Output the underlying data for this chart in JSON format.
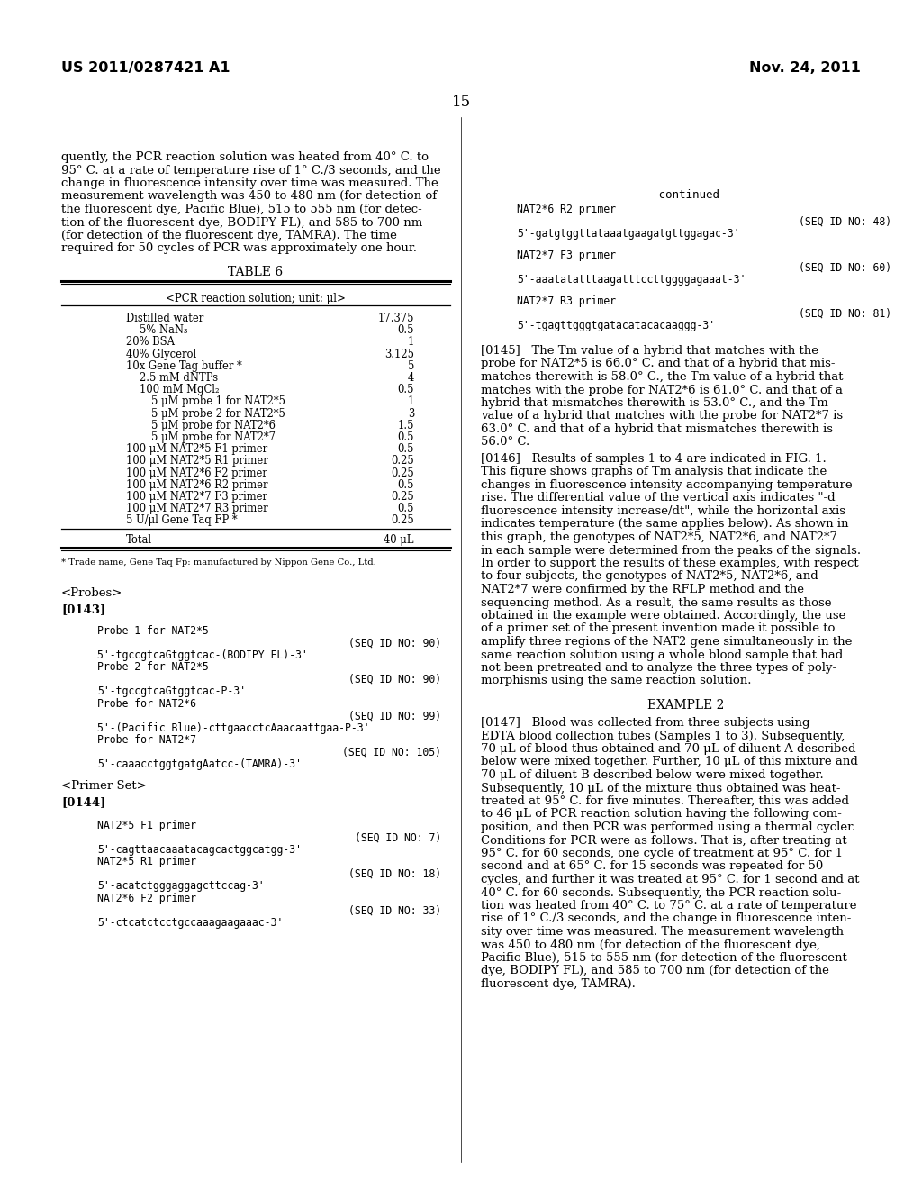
{
  "header_left": "US 2011/0287421 A1",
  "header_right": "Nov. 24, 2011",
  "page_number": "15",
  "background_color": "#ffffff",
  "left_intro": [
    "quently, the PCR reaction solution was heated from 40° C. to",
    "95° C. at a rate of temperature rise of 1° C./3 seconds, and the",
    "change in fluorescence intensity over time was measured. The",
    "measurement wavelength was 450 to 480 nm (for detection of",
    "the fluorescent dye, Pacific Blue), 515 to 555 nm (for detec-",
    "tion of the fluorescent dye, BODIPY FL), and 585 to 700 nm",
    "(for detection of the fluorescent dye, TAMRA). The time",
    "required for 50 cycles of PCR was approximately one hour."
  ],
  "table_title": "TABLE 6",
  "table_subtitle": "<PCR reaction solution; unit: μl>",
  "table_rows": [
    [
      "Distilled water",
      "17.375",
      0
    ],
    [
      "5% NaN₃",
      "0.5",
      1
    ],
    [
      "20% BSA",
      "1",
      0
    ],
    [
      "40% Glycerol",
      "3.125",
      0
    ],
    [
      "10x Gene Tag buffer *",
      "5",
      0
    ],
    [
      "2.5 mM dNTPs",
      "4",
      1
    ],
    [
      "100 mM MgCl₂",
      "0.5",
      1
    ],
    [
      "5 μM probe 1 for NAT2*5",
      "1",
      2
    ],
    [
      "5 μM probe 2 for NAT2*5",
      "3",
      2
    ],
    [
      "5 μM probe for NAT2*6",
      "1.5",
      2
    ],
    [
      "5 μM probe for NAT2*7",
      "0.5",
      2
    ],
    [
      "100 μM NAT2*5 F1 primer",
      "0.5",
      0
    ],
    [
      "100 μM NAT2*5 R1 primer",
      "0.25",
      0
    ],
    [
      "100 μM NAT2*6 F2 primer",
      "0.25",
      0
    ],
    [
      "100 μM NAT2*6 R2 primer",
      "0.5",
      0
    ],
    [
      "100 μM NAT2*7 F3 primer",
      "0.25",
      0
    ],
    [
      "100 μM NAT2*7 R3 primer",
      "0.5",
      0
    ],
    [
      "5 U/μl Gene Taq FP *",
      "0.25",
      0
    ]
  ],
  "table_total": [
    "Total",
    "40 μL"
  ],
  "table_footnote": "* Trade name, Gene Taq Fp: manufactured by Nippon Gene Co., Ltd.",
  "probes_label": "<Probes>",
  "p0143": "[0143]",
  "probes_items": [
    [
      "Probe 1 for NAT2*5",
      "",
      false
    ],
    [
      "",
      "(SEQ ID NO: 90)",
      true
    ],
    [
      "5'-tgccgtcaGtggtcac-(BODIPY FL)-3'",
      "",
      false
    ],
    [
      "Probe 2 for NAT2*5",
      "",
      false
    ],
    [
      "",
      "(SEQ ID NO: 90)",
      true
    ],
    [
      "5'-tgccgtcaGtggtcac-P-3'",
      "",
      false
    ],
    [
      "Probe for NAT2*6",
      "",
      false
    ],
    [
      "",
      "(SEQ ID NO: 99)",
      true
    ],
    [
      "5'-(Pacific Blue)-cttgaacctcAaacaattgaa-P-3'",
      "",
      false
    ],
    [
      "Probe for NAT2*7",
      "",
      false
    ],
    [
      "",
      "(SEQ ID NO: 105)",
      true
    ],
    [
      "5'-caaacctggtgatgAatcc-(TAMRA)-3'",
      "",
      false
    ]
  ],
  "primer_label": "<Primer Set>",
  "p0144": "[0144]",
  "primer_items": [
    [
      "NAT2*5 F1 primer",
      "",
      false
    ],
    [
      "",
      "(SEQ ID NO: 7)",
      true
    ],
    [
      "5'-cagttaacaaatacagcactggcatgg-3'",
      "",
      false
    ],
    [
      "NAT2*5 R1 primer",
      "",
      false
    ],
    [
      "",
      "(SEQ ID NO: 18)",
      true
    ],
    [
      "5'-acatctgggaggagcttccag-3'",
      "",
      false
    ],
    [
      "NAT2*6 F2 primer",
      "",
      false
    ],
    [
      "",
      "(SEQ ID NO: 33)",
      true
    ],
    [
      "5'-ctcatctcctgccaaagaagaaac-3'",
      "",
      false
    ]
  ],
  "right_continued": "-continued",
  "right_seq_items": [
    [
      "NAT2*6 R2 primer",
      "(SEQ ID NO: 48)",
      "5'-gatgtggttataaatgaagatgttggagac-3'"
    ],
    [
      "NAT2*7 F3 primer",
      "(SEQ ID NO: 60)",
      "5'-aaatatatttaagatttccttggggagaaat-3'"
    ],
    [
      "NAT2*7 R3 primer",
      "(SEQ ID NO: 81)",
      "5'-tgagttgggtgatacatacacaaggg-3'"
    ]
  ],
  "para145": [
    "[0145]   The Tm value of a hybrid that matches with the",
    "probe for NAT2*5 is 66.0° C. and that of a hybrid that mis-",
    "matches therewith is 58.0° C., the Tm value of a hybrid that",
    "matches with the probe for NAT2*6 is 61.0° C. and that of a",
    "hybrid that mismatches therewith is 53.0° C., and the Tm",
    "value of a hybrid that matches with the probe for NAT2*7 is",
    "63.0° C. and that of a hybrid that mismatches therewith is",
    "56.0° C."
  ],
  "para146": [
    "[0146]   Results of samples 1 to 4 are indicated in FIG. 1.",
    "This figure shows graphs of Tm analysis that indicate the",
    "changes in fluorescence intensity accompanying temperature",
    "rise. The differential value of the vertical axis indicates \"-d",
    "fluorescence intensity increase/dt\", while the horizontal axis",
    "indicates temperature (the same applies below). As shown in",
    "this graph, the genotypes of NAT2*5, NAT2*6, and NAT2*7",
    "in each sample were determined from the peaks of the signals.",
    "In order to support the results of these examples, with respect",
    "to four subjects, the genotypes of NAT2*5, NAT2*6, and",
    "NAT2*7 were confirmed by the RFLP method and the",
    "sequencing method. As a result, the same results as those",
    "obtained in the example were obtained. Accordingly, the use",
    "of a primer set of the present invention made it possible to",
    "amplify three regions of the NAT2 gene simultaneously in the",
    "same reaction solution using a whole blood sample that had",
    "not been pretreated and to analyze the three types of poly-",
    "morphisms using the same reaction solution."
  ],
  "example2": "EXAMPLE 2",
  "para147": [
    "[0147]   Blood was collected from three subjects using",
    "EDTA blood collection tubes (Samples 1 to 3). Subsequently,",
    "70 μL of blood thus obtained and 70 μL of diluent A described",
    "below were mixed together. Further, 10 μL of this mixture and",
    "70 μL of diluent B described below were mixed together.",
    "Subsequently, 10 μL of the mixture thus obtained was heat-",
    "treated at 95° C. for five minutes. Thereafter, this was added",
    "to 46 μL of PCR reaction solution having the following com-",
    "position, and then PCR was performed using a thermal cycler.",
    "Conditions for PCR were as follows. That is, after treating at",
    "95° C. for 60 seconds, one cycle of treatment at 95° C. for 1",
    "second and at 65° C. for 15 seconds was repeated for 50",
    "cycles, and further it was treated at 95° C. for 1 second and at",
    "40° C. for 60 seconds. Subsequently, the PCR reaction solu-",
    "tion was heated from 40° C. to 75° C. at a rate of temperature",
    "rise of 1° C./3 seconds, and the change in fluorescence inten-",
    "sity over time was measured. The measurement wavelength",
    "was 450 to 480 nm (for detection of the fluorescent dye,",
    "Pacific Blue), 515 to 555 nm (for detection of the fluorescent",
    "dye, BODIPY FL), and 585 to 700 nm (for detection of the",
    "fluorescent dye, TAMRA)."
  ]
}
